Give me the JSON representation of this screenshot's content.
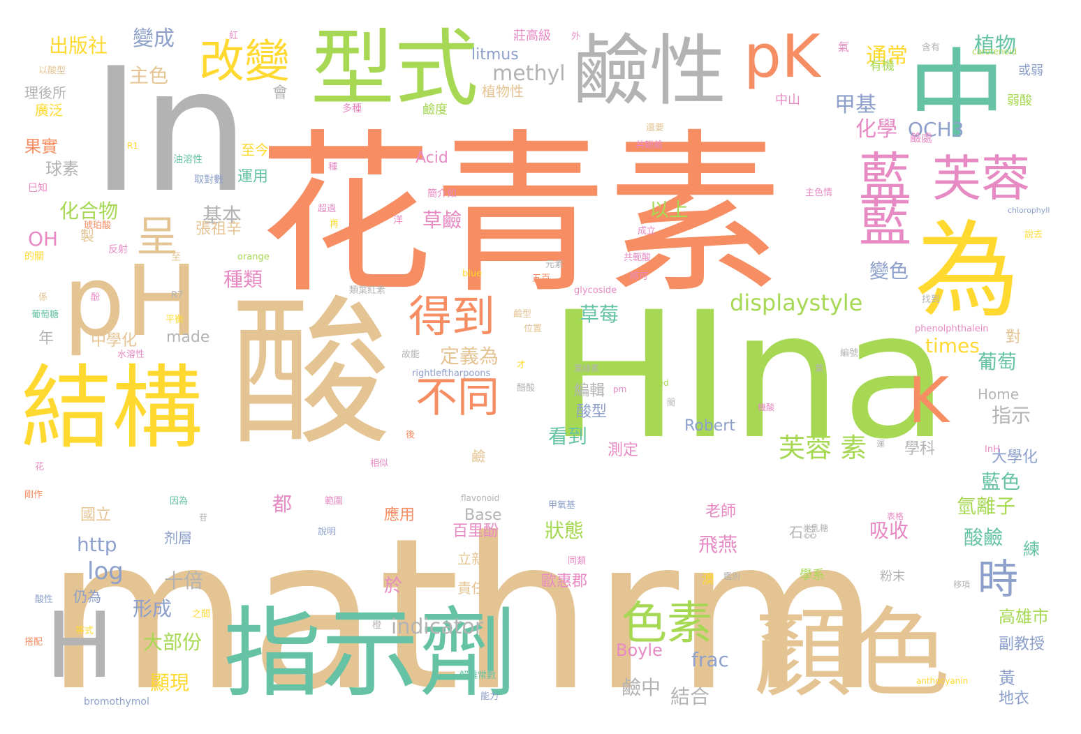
{
  "palette": {
    "orange": "#f78d62",
    "green": "#66c2a5",
    "lime": "#a6d854",
    "yellow": "#ffd92f",
    "tan": "#e5c494",
    "grey": "#b3b3b3",
    "blue": "#8da0cb",
    "pink": "#e78ac3"
  },
  "words": [
    {
      "text": "花青素",
      "color": "orange"
    },
    {
      "text": "mathrm",
      "color": "tan"
    },
    {
      "text": "HIna",
      "color": "lime"
    },
    {
      "text": "In",
      "color": "grey"
    },
    {
      "text": "酸",
      "color": "tan"
    },
    {
      "text": "指示劑",
      "color": "green"
    },
    {
      "text": "顏色",
      "color": "tan"
    },
    {
      "text": "結構",
      "color": "yellow"
    },
    {
      "text": "pH",
      "color": "tan"
    },
    {
      "text": "中",
      "color": "green"
    },
    {
      "text": "型式",
      "color": "lime"
    },
    {
      "text": "鹼性",
      "color": "grey"
    },
    {
      "text": "為",
      "color": "yellow"
    },
    {
      "text": "H",
      "color": "grey"
    },
    {
      "text": "pK",
      "color": "orange"
    },
    {
      "text": "改變",
      "color": "yellow"
    },
    {
      "text": "芙蓉",
      "color": "pink"
    },
    {
      "text": "藍",
      "color": "pink"
    },
    {
      "text": "藍",
      "color": "pink"
    },
    {
      "text": "得到",
      "color": "orange"
    },
    {
      "text": "色素",
      "color": "lime"
    },
    {
      "text": "時",
      "color": "blue"
    },
    {
      "text": "K",
      "color": "orange"
    },
    {
      "text": "呈",
      "color": "tan"
    },
    {
      "text": "不同",
      "color": "orange"
    },
    {
      "text": "displaystyle",
      "color": "lime"
    },
    {
      "text": "芙蓉 素",
      "color": "lime"
    },
    {
      "text": "通常",
      "color": "yellow"
    },
    {
      "text": "植物",
      "color": "green"
    },
    {
      "text": "變成",
      "color": "blue"
    },
    {
      "text": "出版社",
      "color": "yellow"
    },
    {
      "text": "主色",
      "color": "tan"
    },
    {
      "text": "methyl",
      "color": "grey"
    },
    {
      "text": "litmus",
      "color": "blue"
    },
    {
      "text": "甲基",
      "color": "blue"
    },
    {
      "text": "化學",
      "color": "pink"
    },
    {
      "text": "OCH3",
      "color": "blue"
    },
    {
      "text": "化合物",
      "color": "lime"
    },
    {
      "text": "基本",
      "color": "grey"
    },
    {
      "text": "以上",
      "color": "lime"
    },
    {
      "text": "草鹼",
      "color": "pink"
    },
    {
      "text": "變色",
      "color": "blue"
    },
    {
      "text": "OH",
      "color": "pink"
    },
    {
      "text": "種類",
      "color": "pink"
    },
    {
      "text": "草莓",
      "color": "green"
    },
    {
      "text": "times",
      "color": "yellow"
    },
    {
      "text": "定義為",
      "color": "tan"
    },
    {
      "text": "葡萄",
      "color": "green"
    },
    {
      "text": "看到",
      "color": "green"
    },
    {
      "text": "指示",
      "color": "grey"
    },
    {
      "text": "log",
      "color": "blue"
    },
    {
      "text": "http",
      "color": "blue"
    },
    {
      "text": "狀態",
      "color": "lime"
    },
    {
      "text": "吸收",
      "color": "pink"
    },
    {
      "text": "藍色",
      "color": "green"
    },
    {
      "text": "氫離子",
      "color": "lime"
    },
    {
      "text": "酸鹼",
      "color": "green"
    },
    {
      "text": "十倍",
      "color": "grey"
    },
    {
      "text": "形成",
      "color": "blue"
    },
    {
      "text": "飛燕",
      "color": "pink"
    },
    {
      "text": "indicator",
      "color": "grey"
    },
    {
      "text": "frac",
      "color": "blue"
    },
    {
      "text": "大部份",
      "color": "lime"
    },
    {
      "text": "顯現",
      "color": "yellow"
    },
    {
      "text": "鹼中",
      "color": "grey"
    },
    {
      "text": "結合",
      "color": "grey"
    },
    {
      "text": "高雄市",
      "color": "lime"
    },
    {
      "text": "副教授",
      "color": "blue"
    },
    {
      "text": "黃",
      "color": "blue"
    },
    {
      "text": "地衣",
      "color": "blue"
    },
    {
      "text": "Boyle",
      "color": "pink"
    },
    {
      "text": "Base",
      "color": "grey"
    },
    {
      "text": "百里酚",
      "color": "pink"
    },
    {
      "text": "立新",
      "color": "tan"
    },
    {
      "text": "責任",
      "color": "tan"
    },
    {
      "text": "歐惠郡",
      "color": "pink"
    },
    {
      "text": "老師",
      "color": "pink"
    },
    {
      "text": "都",
      "color": "pink"
    },
    {
      "text": "國立",
      "color": "tan"
    },
    {
      "text": "應用",
      "color": "orange"
    },
    {
      "text": "於",
      "color": "pink"
    },
    {
      "text": "Robert",
      "color": "blue"
    },
    {
      "text": "學科",
      "color": "grey"
    },
    {
      "text": "測定",
      "color": "pink"
    },
    {
      "text": "酸型",
      "color": "blue"
    },
    {
      "text": "編輯",
      "color": "grey"
    },
    {
      "text": "大學化",
      "color": "blue"
    },
    {
      "text": "練",
      "color": "green"
    },
    {
      "text": "made",
      "color": "grey"
    },
    {
      "text": "中學化",
      "color": "tan"
    },
    {
      "text": "年",
      "color": "grey"
    },
    {
      "text": "果實",
      "color": "orange"
    },
    {
      "text": "球素",
      "color": "grey"
    },
    {
      "text": "廣泛",
      "color": "yellow"
    },
    {
      "text": "理後所",
      "color": "grey"
    },
    {
      "text": "會",
      "color": "grey"
    },
    {
      "text": "植物性",
      "color": "tan"
    },
    {
      "text": "鹼度",
      "color": "lime"
    },
    {
      "text": "Acid",
      "color": "pink"
    },
    {
      "text": "運用",
      "color": "green"
    },
    {
      "text": "至今",
      "color": "yellow"
    },
    {
      "text": "張祖辛",
      "color": "tan"
    },
    {
      "text": "剂層",
      "color": "blue"
    },
    {
      "text": "仍為",
      "color": "blue"
    },
    {
      "text": "Home",
      "color": "grey"
    },
    {
      "text": "對",
      "color": "tan"
    },
    {
      "text": "莊高級",
      "color": "pink"
    },
    {
      "text": "氣",
      "color": "pink"
    },
    {
      "text": "有機",
      "color": "lime"
    },
    {
      "text": "或弱",
      "color": "blue"
    },
    {
      "text": "弱酸",
      "color": "lime"
    },
    {
      "text": "中山",
      "color": "pink"
    },
    {
      "text": "鹼處",
      "color": "pink"
    },
    {
      "text": "石蕊",
      "color": "grey"
    },
    {
      "text": "學系",
      "color": "lime"
    },
    {
      "text": "粉末",
      "color": "grey"
    },
    {
      "text": "澳",
      "color": "yellow"
    },
    {
      "text": "鹼",
      "color": "tan"
    },
    {
      "text": "含有",
      "color": "grey"
    },
    {
      "text": "carotenoid",
      "color": "lime"
    },
    {
      "text": "chlorophyll",
      "color": "blue"
    },
    {
      "text": "多種",
      "color": "pink"
    },
    {
      "text": "油溶性",
      "color": "green"
    },
    {
      "text": "取對數",
      "color": "blue"
    },
    {
      "text": "還要",
      "color": "tan"
    },
    {
      "text": "共軛鹼",
      "color": "pink"
    },
    {
      "text": "主色情",
      "color": "pink"
    },
    {
      "text": "種",
      "color": "pink"
    },
    {
      "text": "超過",
      "color": "pink"
    },
    {
      "text": "再",
      "color": "yellow"
    },
    {
      "text": "簡介如",
      "color": "pink"
    },
    {
      "text": "洋",
      "color": "pink"
    },
    {
      "text": "R1",
      "color": "yellow"
    },
    {
      "text": "R7",
      "color": "grey"
    },
    {
      "text": "巳知",
      "color": "pink"
    },
    {
      "text": "以酸型",
      "color": "tan"
    },
    {
      "text": "紅",
      "color": "pink"
    },
    {
      "text": "琥珀酸",
      "color": "orange"
    },
    {
      "text": "的關",
      "color": "yellow"
    },
    {
      "text": "製",
      "color": "tan"
    },
    {
      "text": "反射",
      "color": "pink"
    },
    {
      "text": "成立",
      "color": "pink"
    },
    {
      "text": "說去",
      "color": "yellow"
    },
    {
      "text": "orange",
      "color": "lime"
    },
    {
      "text": "至",
      "color": "tan"
    },
    {
      "text": "共軛酸",
      "color": "pink"
    },
    {
      "text": "將可",
      "color": "pink"
    },
    {
      "text": "blue",
      "color": "yellow"
    },
    {
      "text": "元素",
      "color": "grey"
    },
    {
      "text": "五百",
      "color": "orange"
    },
    {
      "text": "類葉紅素",
      "color": "grey"
    },
    {
      "text": "glycoside",
      "color": "pink"
    },
    {
      "text": "係",
      "color": "tan"
    },
    {
      "text": "酚",
      "color": "pink"
    },
    {
      "text": "葡萄糖",
      "color": "green"
    },
    {
      "text": "平衡",
      "color": "yellow"
    },
    {
      "text": "水溶性",
      "color": "pink"
    },
    {
      "text": "故能",
      "color": "grey"
    },
    {
      "text": "鹼型",
      "color": "tan"
    },
    {
      "text": "位置",
      "color": "tan"
    },
    {
      "text": "找到",
      "color": "grey"
    },
    {
      "text": "phenolphthalein",
      "color": "pink"
    },
    {
      "text": "編號",
      "color": "grey"
    },
    {
      "text": "rightleftharpoons",
      "color": "blue"
    },
    {
      "text": "才",
      "color": "yellow"
    },
    {
      "text": "葉綠素",
      "color": "grey"
    },
    {
      "text": "葉",
      "color": "grey"
    },
    {
      "text": "red",
      "color": "lime"
    },
    {
      "text": "醋酸",
      "color": "grey"
    },
    {
      "text": "pm",
      "color": "pink"
    },
    {
      "text": "閩",
      "color": "grey"
    },
    {
      "text": "機酸",
      "color": "pink"
    },
    {
      "text": "後",
      "color": "orange"
    },
    {
      "text": "相似",
      "color": "pink"
    },
    {
      "text": "運",
      "color": "grey"
    },
    {
      "text": "InH",
      "color": "pink"
    },
    {
      "text": "花",
      "color": "pink"
    },
    {
      "text": "flavonoid",
      "color": "grey"
    },
    {
      "text": "甲氧基",
      "color": "blue"
    },
    {
      "text": "因為",
      "color": "green"
    },
    {
      "text": "苷",
      "color": "grey"
    },
    {
      "text": "表格",
      "color": "pink"
    },
    {
      "text": "剛作",
      "color": "orange"
    },
    {
      "text": "範圍",
      "color": "pink"
    },
    {
      "text": "半乳糖",
      "color": "grey"
    },
    {
      "text": "說明",
      "color": "blue"
    },
    {
      "text": "同類",
      "color": "pink"
    },
    {
      "text": "鑑別",
      "color": "grey"
    },
    {
      "text": "移項",
      "color": "grey"
    },
    {
      "text": "酸性",
      "color": "blue"
    },
    {
      "text": "之間",
      "color": "yellow"
    },
    {
      "text": "等式",
      "color": "yellow"
    },
    {
      "text": "搭配",
      "color": "orange"
    },
    {
      "text": "橙",
      "color": "grey"
    },
    {
      "text": "解離常數",
      "color": "green"
    },
    {
      "text": "能力",
      "color": "blue"
    },
    {
      "text": "anthocyanin",
      "color": "yellow"
    },
    {
      "text": "bromothymol",
      "color": "blue"
    },
    {
      "text": "外",
      "color": "pink"
    }
  ]
}
